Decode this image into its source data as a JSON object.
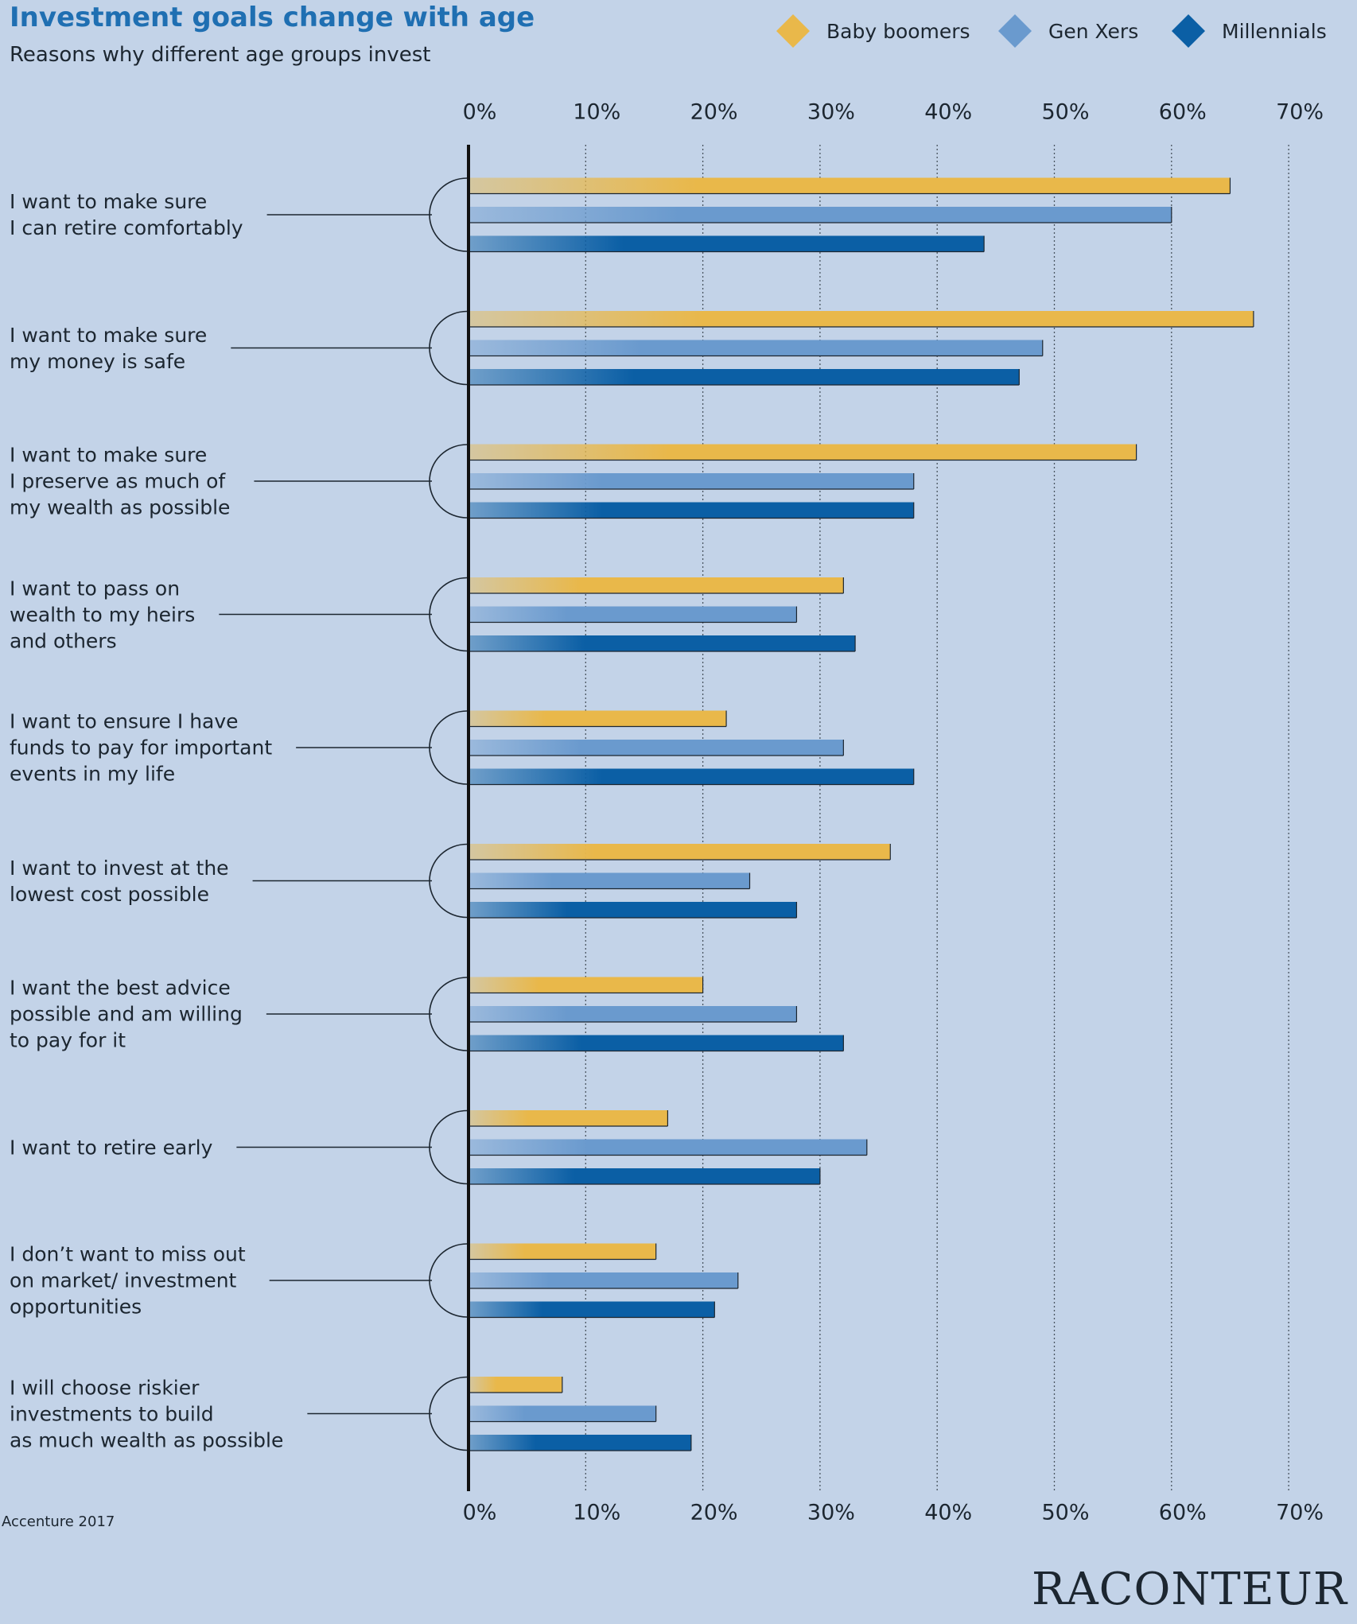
{
  "chart_data": {
    "type": "bar",
    "orientation": "horizontal",
    "title": "Investment goals change with age",
    "subtitle": "Reasons why different age groups invest",
    "source": "Accenture 2017",
    "brand": "RACONTEUR",
    "legend": "top-right",
    "grid": true,
    "categories": [
      "I want to make sure\nI can retire comfortably",
      "I want to make sure\nmy money is safe",
      "I want to make sure\nI preserve as much of\nmy wealth as possible",
      "I want to pass on\nwealth to my heirs\nand others",
      "I want to ensure I have\nfunds to pay for important\nevents in my life",
      "I want to invest at the\nlowest cost possible",
      "I want the best advice\npossible and am willing\nto pay for it",
      "I want to retire early",
      "I don’t want to miss out\non market/ investment\nopportunities",
      "I will choose riskier\ninvestments to build\nas much wealth as possible"
    ],
    "series": [
      {
        "name": "Baby boomers",
        "color": "#e9b84a",
        "values": [
          65,
          67,
          57,
          32,
          22,
          36,
          20,
          17,
          16,
          8
        ]
      },
      {
        "name": "Gen Xers",
        "color": "#6a9ace",
        "values": [
          60,
          49,
          38,
          28,
          32,
          24,
          28,
          34,
          23,
          16
        ]
      },
      {
        "name": "Millennials",
        "color": "#0b5fa5",
        "values": [
          44,
          47,
          38,
          33,
          38,
          28,
          32,
          30,
          21,
          19
        ]
      }
    ],
    "xlim": [
      0,
      70
    ],
    "xticks": [
      {
        "value": 0,
        "label": "0%"
      },
      {
        "value": 10,
        "label": "10%"
      },
      {
        "value": 20,
        "label": "20%"
      },
      {
        "value": 30,
        "label": "30%"
      },
      {
        "value": 40,
        "label": "40%"
      },
      {
        "value": 50,
        "label": "50%"
      },
      {
        "value": 60,
        "label": "60%"
      },
      {
        "value": 70,
        "label": "70%"
      }
    ]
  }
}
